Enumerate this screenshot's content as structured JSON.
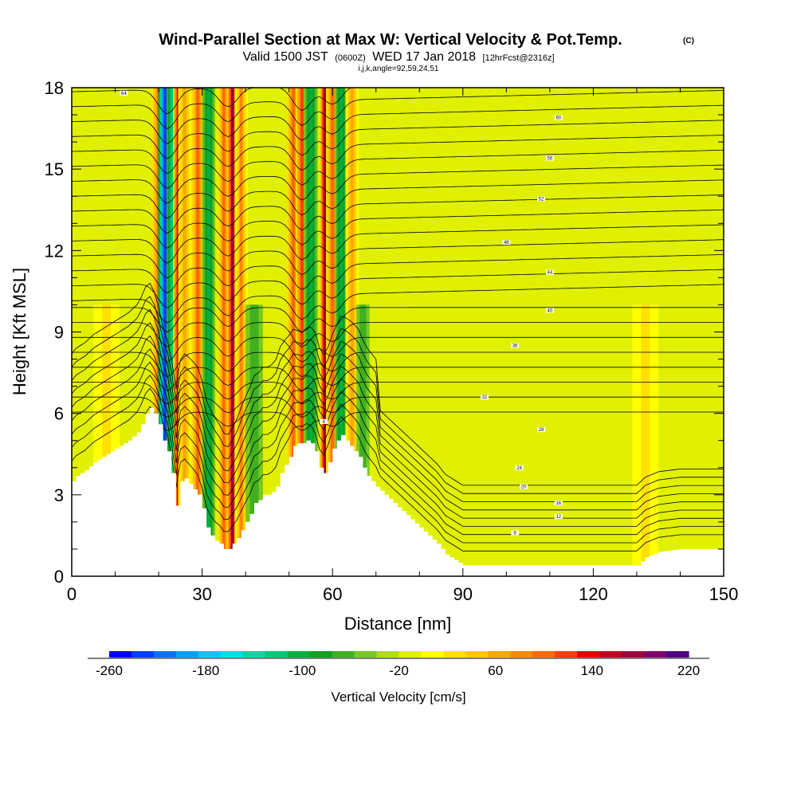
{
  "chart_data": {
    "type": "heatmap",
    "title": "Wind-Parallel Section at Max W: Vertical Velocity & Pot.Temp.",
    "title_mark": "(C)",
    "subtitle": {
      "prefix": "Valid 1500 JST",
      "utc": "(0600Z)",
      "date": "WED 17 Jan 2018",
      "forecast": "[12hrFcst@2316z]"
    },
    "indices": "i,j,k,angle=92,59,24,51",
    "xlabel": "Distance [nm]",
    "ylabel": "Height [Kft MSL]",
    "xlim": [
      0,
      150
    ],
    "ylim": [
      0,
      18
    ],
    "x_ticks": [
      "0",
      "30",
      "60",
      "90",
      "120",
      "150"
    ],
    "y_ticks": [
      "0",
      "3",
      "6",
      "9",
      "12",
      "15",
      "18"
    ],
    "colorbar": {
      "label": "Vertical Velocity [cm/s]",
      "tick_labels": [
        "-260",
        "-180",
        "-100",
        "-20",
        "60",
        "140",
        "220"
      ],
      "min": -260,
      "max": 220,
      "step": 20,
      "colors": [
        "#0000ff",
        "#0040ff",
        "#0070ff",
        "#00a0ff",
        "#00c8ff",
        "#00e0e0",
        "#00d8a0",
        "#00c878",
        "#00b040",
        "#10a020",
        "#40b020",
        "#78c820",
        "#b0e000",
        "#e0f000",
        "#ffff00",
        "#ffe000",
        "#ffc800",
        "#ffa800",
        "#ff8800",
        "#ff6800",
        "#ff3c00",
        "#e80000",
        "#c00020",
        "#a00040",
        "#800070",
        "#500080"
      ]
    },
    "background_value_cms": 0,
    "vertical_velocity_bands": [
      {
        "center_nm": 20.0,
        "width_nm": 1.6,
        "w_cms": 120
      },
      {
        "center_nm": 21.5,
        "width_nm": 1.6,
        "w_cms": -240
      },
      {
        "center_nm": 23.0,
        "width_nm": 1.2,
        "w_cms": -120
      },
      {
        "center_nm": 24.5,
        "width_nm": 1.2,
        "w_cms": 160
      },
      {
        "center_nm": 26.0,
        "width_nm": 1.5,
        "w_cms": 80
      },
      {
        "center_nm": 29.0,
        "width_nm": 1.5,
        "w_cms": 120
      },
      {
        "center_nm": 31.5,
        "width_nm": 1.5,
        "w_cms": -100
      },
      {
        "center_nm": 35.0,
        "width_nm": 1.3,
        "w_cms": 120
      },
      {
        "center_nm": 37.0,
        "width_nm": 1.3,
        "w_cms": 200
      },
      {
        "center_nm": 39.0,
        "width_nm": 1.5,
        "w_cms": 100
      },
      {
        "center_nm": 42.0,
        "width_nm": 2.0,
        "w_cms": -60
      },
      {
        "center_nm": 51.0,
        "width_nm": 1.5,
        "w_cms": 120
      },
      {
        "center_nm": 53.0,
        "width_nm": 1.4,
        "w_cms": 140
      },
      {
        "center_nm": 55.0,
        "width_nm": 1.6,
        "w_cms": -100
      },
      {
        "center_nm": 58.5,
        "width_nm": 1.4,
        "w_cms": 220
      },
      {
        "center_nm": 60.0,
        "width_nm": 1.5,
        "w_cms": 120
      },
      {
        "center_nm": 62.0,
        "width_nm": 1.5,
        "w_cms": -100
      },
      {
        "center_nm": 64.5,
        "width_nm": 1.5,
        "w_cms": 80
      },
      {
        "center_nm": 67.0,
        "width_nm": 1.5,
        "w_cms": -60
      },
      {
        "center_nm": 8.0,
        "width_nm": 4.0,
        "w_cms": 40
      },
      {
        "center_nm": 132.0,
        "width_nm": 4.0,
        "w_cms": 40
      }
    ],
    "terrain": {
      "x_nm": [
        0,
        1,
        3,
        5,
        7,
        9,
        11,
        13,
        15,
        16,
        17,
        18,
        19,
        20,
        21,
        22,
        23,
        24,
        25,
        26,
        27,
        28,
        29,
        30,
        31,
        32,
        33,
        34,
        35,
        36,
        37,
        38,
        39,
        40,
        41,
        42,
        43,
        44,
        45,
        46,
        47,
        48,
        49,
        50,
        51,
        52,
        53,
        54,
        55,
        56,
        57,
        58,
        59,
        60,
        61,
        62,
        63,
        64,
        65,
        66,
        67,
        68,
        70,
        72,
        74,
        76,
        78,
        80,
        82,
        84,
        86,
        88,
        90,
        100,
        110,
        120,
        130,
        132,
        135,
        140,
        145,
        150
      ],
      "height_kft": [
        3.5,
        3.7,
        3.9,
        4.2,
        4.4,
        4.6,
        4.8,
        5.0,
        5.3,
        5.6,
        6.0,
        6.2,
        6.0,
        5.6,
        5.0,
        4.6,
        3.8,
        2.6,
        3.5,
        3.6,
        3.4,
        3.2,
        3.0,
        2.5,
        1.8,
        1.5,
        1.3,
        1.2,
        1.0,
        1.0,
        1.2,
        1.4,
        1.7,
        2.0,
        2.3,
        2.7,
        2.8,
        3.0,
        3.0,
        3.1,
        3.3,
        3.8,
        4.1,
        4.4,
        4.8,
        4.9,
        4.9,
        5.0,
        4.9,
        4.6,
        4.0,
        3.8,
        4.2,
        4.7,
        5.0,
        5.2,
        5.0,
        4.8,
        4.6,
        4.4,
        4.0,
        3.7,
        3.3,
        3.0,
        2.7,
        2.4,
        2.1,
        1.8,
        1.5,
        1.2,
        0.8,
        0.6,
        0.4,
        0.4,
        0.4,
        0.4,
        0.4,
        0.7,
        0.9,
        1.0,
        1.0,
        1.0
      ]
    },
    "isentrope_count": 32,
    "isentrope_labels": [
      "64",
      "60",
      "56",
      "52",
      "48",
      "44",
      "40",
      "36",
      "32",
      "28",
      "24",
      "20",
      "16",
      "12",
      "8",
      "4"
    ]
  }
}
